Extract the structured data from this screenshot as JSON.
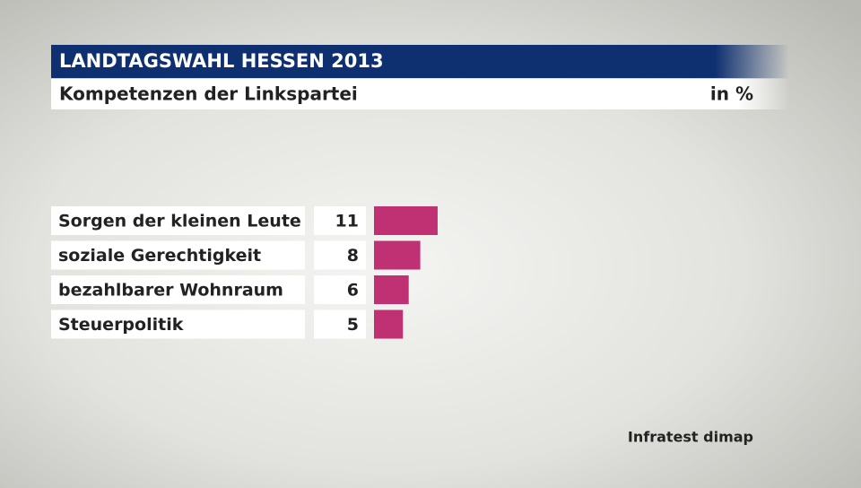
{
  "chart_data": {
    "type": "bar",
    "orientation": "horizontal",
    "title": "LANDTAGSWAHL HESSEN 2013",
    "subtitle": "Kompetenzen der Linkspartei",
    "unit": "in %",
    "source": "Infratest dimap",
    "categories": [
      "Sorgen der kleinen Leute",
      "soziale Gerechtigkeit",
      "bezahlbarer Wohnraum",
      "Steuerpolitik"
    ],
    "values": [
      11,
      8,
      6,
      5
    ],
    "color": "#bf3173"
  }
}
